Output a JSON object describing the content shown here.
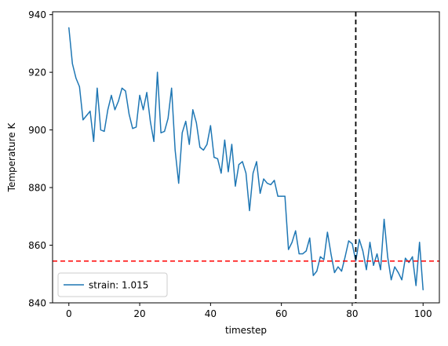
{
  "chart_data": {
    "type": "line",
    "title": "",
    "xlabel": "timestep",
    "ylabel": "Temperature K",
    "xlim": [
      -4.6,
      104.6
    ],
    "ylim": [
      840,
      941
    ],
    "xticks": [
      0,
      20,
      40,
      60,
      80,
      100
    ],
    "yticks": [
      840,
      860,
      880,
      900,
      920,
      940
    ],
    "grid": false,
    "legend_position": "lower left",
    "series": [
      {
        "name": "strain: 1.015",
        "color": "#1f77b4",
        "x": [
          0,
          1,
          2,
          3,
          4,
          5,
          6,
          7,
          8,
          9,
          10,
          11,
          12,
          13,
          14,
          15,
          16,
          17,
          18,
          19,
          20,
          21,
          22,
          23,
          24,
          25,
          26,
          27,
          28,
          29,
          30,
          31,
          32,
          33,
          34,
          35,
          36,
          37,
          38,
          39,
          40,
          41,
          42,
          43,
          44,
          45,
          46,
          47,
          48,
          49,
          50,
          51,
          52,
          53,
          54,
          55,
          56,
          57,
          58,
          59,
          60,
          61,
          62,
          63,
          64,
          65,
          66,
          67,
          68,
          69,
          70,
          71,
          72,
          73,
          74,
          75,
          76,
          77,
          78,
          79,
          80,
          81,
          82,
          83,
          84,
          85,
          86,
          87,
          88,
          89,
          90,
          91,
          92,
          93,
          94,
          95,
          96,
          97,
          98,
          99,
          100
        ],
        "y": [
          935.5,
          923,
          918,
          915,
          903.5,
          905,
          906.5,
          896,
          914.5,
          900,
          899.5,
          907,
          912,
          907,
          910,
          914.5,
          913.5,
          905.5,
          900.5,
          901,
          912,
          907,
          913,
          903,
          896,
          920,
          899,
          899.5,
          904,
          914.5,
          893,
          881.5,
          899,
          903,
          895,
          907,
          902.5,
          894,
          893,
          895,
          901.5,
          890.5,
          890,
          885,
          896.5,
          885.5,
          895,
          880.5,
          888,
          889,
          885,
          872,
          885,
          889,
          878,
          883,
          881.5,
          881,
          882.5,
          877,
          877,
          877,
          858.5,
          861,
          865,
          857,
          857,
          858,
          862.5,
          849.5,
          851,
          856,
          855,
          864.5,
          857,
          850.5,
          852.5,
          851,
          856,
          861.5,
          860.5,
          854.5,
          862,
          858,
          851.5,
          861,
          853,
          857,
          851.5,
          869,
          856,
          848,
          852.5,
          850.5,
          848,
          855.5,
          854,
          856,
          846,
          861,
          844.5
        ]
      }
    ],
    "annotations": [
      {
        "type": "hline",
        "value": 854.5,
        "color": "#ff0000",
        "style": "dashed"
      },
      {
        "type": "vline",
        "value": 81,
        "color": "#000000",
        "style": "dashed"
      }
    ]
  }
}
